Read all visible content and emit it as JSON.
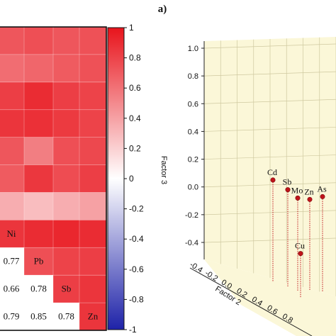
{
  "figure_label": "a)",
  "chart_data": [
    {
      "type": "heatmap",
      "title": "",
      "visible_row_labels": [
        "Ni",
        "Pb",
        "Sb",
        "Zn"
      ],
      "visible_lower_values": [
        {
          "row": "Pb",
          "col": "Ni",
          "value": 0.77
        },
        {
          "row": "Sb",
          "col": "Ni",
          "value": 0.66
        },
        {
          "row": "Sb",
          "col": "Pb",
          "value": 0.78
        },
        {
          "row": "Zn",
          "col": "Ni",
          "value": 0.79
        },
        {
          "row": "Zn",
          "col": "Pb",
          "value": 0.85
        },
        {
          "row": "Zn",
          "col": "Sb",
          "value": 0.78
        }
      ],
      "upper_cell_values": [
        [
          0.72,
          0.75,
          0.72,
          0.74
        ],
        [
          0.62,
          0.65,
          0.7,
          0.74
        ],
        [
          0.82,
          0.9,
          0.82,
          0.8
        ],
        [
          0.86,
          0.88,
          0.84,
          0.8
        ],
        [
          0.72,
          0.55,
          0.75,
          0.78
        ],
        [
          0.7,
          0.85,
          0.76,
          0.82
        ],
        [
          0.35,
          0.28,
          0.35,
          0.4
        ],
        [
          0.86,
          0.9,
          0.92,
          0.9
        ],
        [
          null,
          0.75,
          0.8,
          0.82
        ],
        [
          null,
          null,
          0.82,
          0.86
        ],
        [
          null,
          null,
          null,
          0.86
        ]
      ],
      "colorbar": {
        "range": [
          -1,
          1
        ],
        "ticks": [
          "1",
          "0.8",
          "0.6",
          "0.4",
          "0.2",
          "0",
          "-0.2",
          "-0.4",
          "-0.6",
          "-0.8",
          "-1"
        ],
        "color_negative": "#1e22a8",
        "color_zero": "#ffffff",
        "color_positive": "#e8141c"
      }
    },
    {
      "type": "scatter",
      "projection": "3d",
      "zlabel": "Factor 3",
      "xlabel": "Factor 2",
      "zlim": [
        -0.4,
        1.0
      ],
      "z_ticks": [
        "1.0",
        "0.8",
        "0.6",
        "0.4",
        "0.2",
        "0.0",
        "-0.2",
        "-0.4"
      ],
      "front_axis_ticks": [
        "-0.4",
        "-0.2",
        "0.0",
        "0.2",
        "0.4",
        "0.6",
        "0.8"
      ],
      "points": [
        {
          "label": "Cd",
          "z": 0.05
        },
        {
          "label": "Sb",
          "z": -0.02
        },
        {
          "label": "Mo",
          "z": -0.08
        },
        {
          "label": "Zn",
          "z": -0.09
        },
        {
          "label": "As",
          "z": -0.07
        },
        {
          "label": "Cu",
          "z": -0.48
        }
      ],
      "point_color": "#c0141a",
      "pane_color": "#fbf7d8",
      "grid_color": "#cfc9a0"
    }
  ]
}
